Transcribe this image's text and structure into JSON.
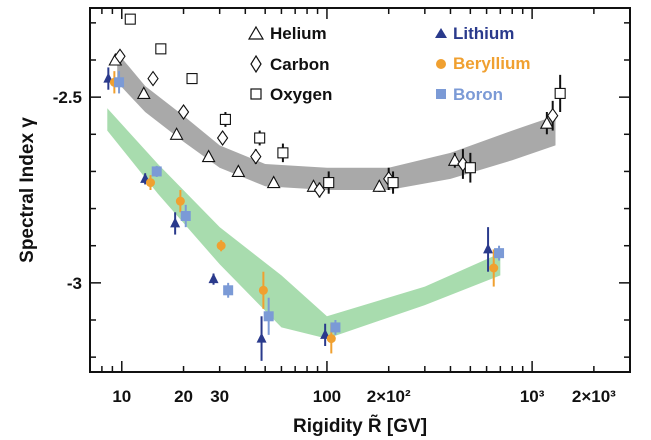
{
  "chart_data": {
    "type": "scatter",
    "xlabel": "Rigidity R̃ [GV]",
    "ylabel": "Spectral Index γ",
    "x_scale": "log",
    "xlim": [
      7,
      3000
    ],
    "ylim": [
      -3.24,
      -2.26
    ],
    "x_ticks": [
      {
        "value": 10,
        "label": "10"
      },
      {
        "value": 20,
        "label": "20"
      },
      {
        "value": 30,
        "label": "30"
      },
      {
        "value": 100,
        "label": "100"
      },
      {
        "value": 200,
        "label": "2×10²"
      },
      {
        "value": 1000,
        "label": "10³"
      },
      {
        "value": 2000,
        "label": "2×10³"
      }
    ],
    "y_ticks": [
      {
        "value": -2.5,
        "label": "-2.5"
      },
      {
        "value": -3,
        "label": "-3"
      }
    ],
    "legend_placement": "top",
    "colors": {
      "helium": "#111111",
      "carbon": "#111111",
      "oxygen": "#111111",
      "lithium": "#2a3a8c",
      "beryllium": "#f0a030",
      "boron": "#7b9ad6",
      "heavy_band": "#a9a9a9",
      "light_band": "#a8dcae"
    },
    "bands": [
      {
        "name": "He-C-O",
        "upper": [
          [
            9.5,
            -2.38
          ],
          [
            13,
            -2.47
          ],
          [
            20,
            -2.55
          ],
          [
            30,
            -2.63
          ],
          [
            50,
            -2.68
          ],
          [
            100,
            -2.69
          ],
          [
            200,
            -2.69
          ],
          [
            400,
            -2.65
          ],
          [
            800,
            -2.59
          ],
          [
            1300,
            -2.55
          ]
        ],
        "lower": [
          [
            9.5,
            -2.46
          ],
          [
            13,
            -2.54
          ],
          [
            20,
            -2.62
          ],
          [
            30,
            -2.69
          ],
          [
            50,
            -2.74
          ],
          [
            100,
            -2.75
          ],
          [
            200,
            -2.75
          ],
          [
            400,
            -2.72
          ],
          [
            800,
            -2.67
          ],
          [
            1300,
            -2.63
          ]
        ]
      },
      {
        "name": "Li-Be-B",
        "upper": [
          [
            8.5,
            -2.53
          ],
          [
            15,
            -2.68
          ],
          [
            30,
            -2.85
          ],
          [
            60,
            -2.98
          ],
          [
            100,
            -3.09
          ],
          [
            300,
            -3.01
          ],
          [
            700,
            -2.92
          ]
        ],
        "lower": [
          [
            8.5,
            -2.59
          ],
          [
            15,
            -2.76
          ],
          [
            30,
            -2.95
          ],
          [
            60,
            -3.12
          ],
          [
            100,
            -3.15
          ],
          [
            300,
            -3.06
          ],
          [
            700,
            -2.98
          ]
        ]
      }
    ],
    "series": [
      {
        "name": "Helium",
        "marker": "triangle-open",
        "points": [
          {
            "x": 9.3,
            "y": -2.4,
            "err": 0.01
          },
          {
            "x": 12.8,
            "y": -2.49,
            "err": 0.01
          },
          {
            "x": 18.5,
            "y": -2.6,
            "err": 0.01
          },
          {
            "x": 26.5,
            "y": -2.66,
            "err": 0.01
          },
          {
            "x": 37,
            "y": -2.7,
            "err": 0.01
          },
          {
            "x": 55,
            "y": -2.73,
            "err": 0.01
          },
          {
            "x": 86,
            "y": -2.74,
            "err": 0.01
          },
          {
            "x": 180,
            "y": -2.74,
            "err": 0.015
          },
          {
            "x": 420,
            "y": -2.67,
            "err": 0.02
          },
          {
            "x": 1180,
            "y": -2.57,
            "err": 0.03
          }
        ]
      },
      {
        "name": "Carbon",
        "marker": "diamond-open",
        "points": [
          {
            "x": 9.8,
            "y": -2.39,
            "err": 0.01
          },
          {
            "x": 14.2,
            "y": -2.45,
            "err": 0.01
          },
          {
            "x": 20,
            "y": -2.54,
            "err": 0.01
          },
          {
            "x": 31,
            "y": -2.61,
            "err": 0.01
          },
          {
            "x": 45,
            "y": -2.66,
            "err": 0.02
          },
          {
            "x": 92,
            "y": -2.75,
            "err": 0.02
          },
          {
            "x": 200,
            "y": -2.72,
            "err": 0.03
          },
          {
            "x": 460,
            "y": -2.68,
            "err": 0.04
          },
          {
            "x": 1260,
            "y": -2.55,
            "err": 0.04
          }
        ]
      },
      {
        "name": "Oxygen",
        "marker": "square-open",
        "points": [
          {
            "x": 11,
            "y": -2.29,
            "err": 0.01
          },
          {
            "x": 15.5,
            "y": -2.37,
            "err": 0.01
          },
          {
            "x": 22,
            "y": -2.45,
            "err": 0.01
          },
          {
            "x": 32,
            "y": -2.56,
            "err": 0.02
          },
          {
            "x": 47,
            "y": -2.61,
            "err": 0.02
          },
          {
            "x": 61,
            "y": -2.65,
            "err": 0.025
          },
          {
            "x": 102,
            "y": -2.73,
            "err": 0.03
          },
          {
            "x": 210,
            "y": -2.73,
            "err": 0.03
          },
          {
            "x": 500,
            "y": -2.69,
            "err": 0.04
          },
          {
            "x": 1370,
            "y": -2.49,
            "err": 0.05
          }
        ]
      },
      {
        "name": "Lithium",
        "marker": "triangle-filled",
        "points": [
          {
            "x": 8.6,
            "y": -2.45,
            "err": 0.03
          },
          {
            "x": 13,
            "y": -2.72,
            "err": 0.015
          },
          {
            "x": 18.2,
            "y": -2.84,
            "err": 0.03
          },
          {
            "x": 28,
            "y": -2.99,
            "err": 0.015
          },
          {
            "x": 48,
            "y": -3.15,
            "err": 0.06
          },
          {
            "x": 98,
            "y": -3.14,
            "err": 0.03
          },
          {
            "x": 610,
            "y": -2.91,
            "err": 0.06
          }
        ]
      },
      {
        "name": "Beryllium",
        "marker": "circle-filled",
        "points": [
          {
            "x": 9.2,
            "y": -2.46,
            "err": 0.03
          },
          {
            "x": 13.8,
            "y": -2.73,
            "err": 0.02
          },
          {
            "x": 19.3,
            "y": -2.78,
            "err": 0.03
          },
          {
            "x": 30.5,
            "y": -2.9,
            "err": 0.015
          },
          {
            "x": 49,
            "y": -3.02,
            "err": 0.05
          },
          {
            "x": 105,
            "y": -3.15,
            "err": 0.04
          },
          {
            "x": 650,
            "y": -2.96,
            "err": 0.05
          }
        ]
      },
      {
        "name": "Boron",
        "marker": "square-filled",
        "points": [
          {
            "x": 9.7,
            "y": -2.46,
            "err": 0.03
          },
          {
            "x": 14.8,
            "y": -2.7,
            "err": 0.015
          },
          {
            "x": 20.5,
            "y": -2.82,
            "err": 0.03
          },
          {
            "x": 33,
            "y": -3.02,
            "err": 0.02
          },
          {
            "x": 52,
            "y": -3.09,
            "err": 0.05
          },
          {
            "x": 110,
            "y": -3.12,
            "err": 0.02
          },
          {
            "x": 690,
            "y": -2.92,
            "err": 0.02
          }
        ]
      }
    ]
  }
}
